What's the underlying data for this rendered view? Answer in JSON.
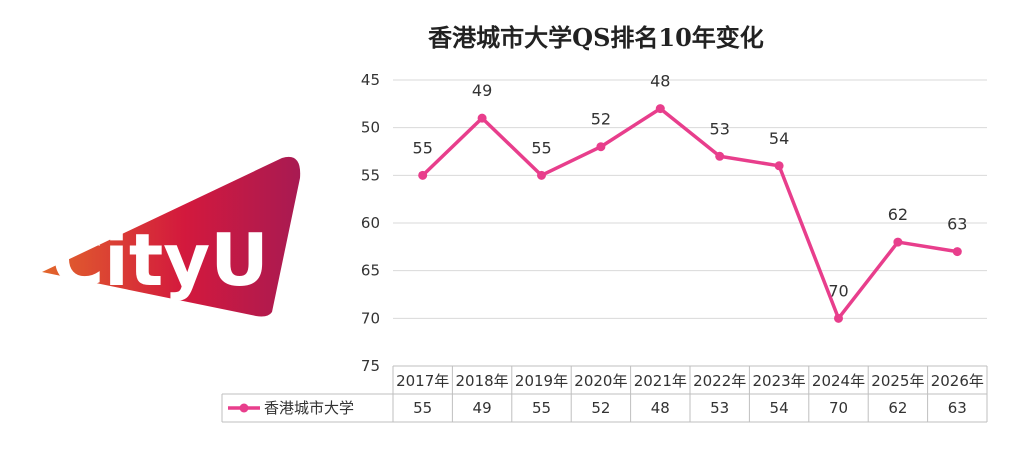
{
  "title": "香港城市大学QS排名10年变化",
  "logo": {
    "text": "CityU",
    "colors": [
      "#e2562b",
      "#d0193f",
      "#b0184f"
    ]
  },
  "chart_data": {
    "type": "line",
    "title": "香港城市大学QS排名10年变化",
    "categories": [
      "2017年",
      "2018年",
      "2019年",
      "2020年",
      "2021年",
      "2022年",
      "2023年",
      "2024年",
      "2025年",
      "2026年"
    ],
    "series": [
      {
        "name": "香港城市大学",
        "values": [
          55,
          49,
          55,
          52,
          48,
          53,
          54,
          70,
          62,
          63
        ],
        "color": "#e83e8c"
      }
    ],
    "yticks": [
      45,
      50,
      55,
      60,
      65,
      70,
      75
    ],
    "ylim": [
      45,
      75
    ],
    "y_inverted": true,
    "grid": true,
    "data_table": true,
    "legend": "in data table"
  }
}
